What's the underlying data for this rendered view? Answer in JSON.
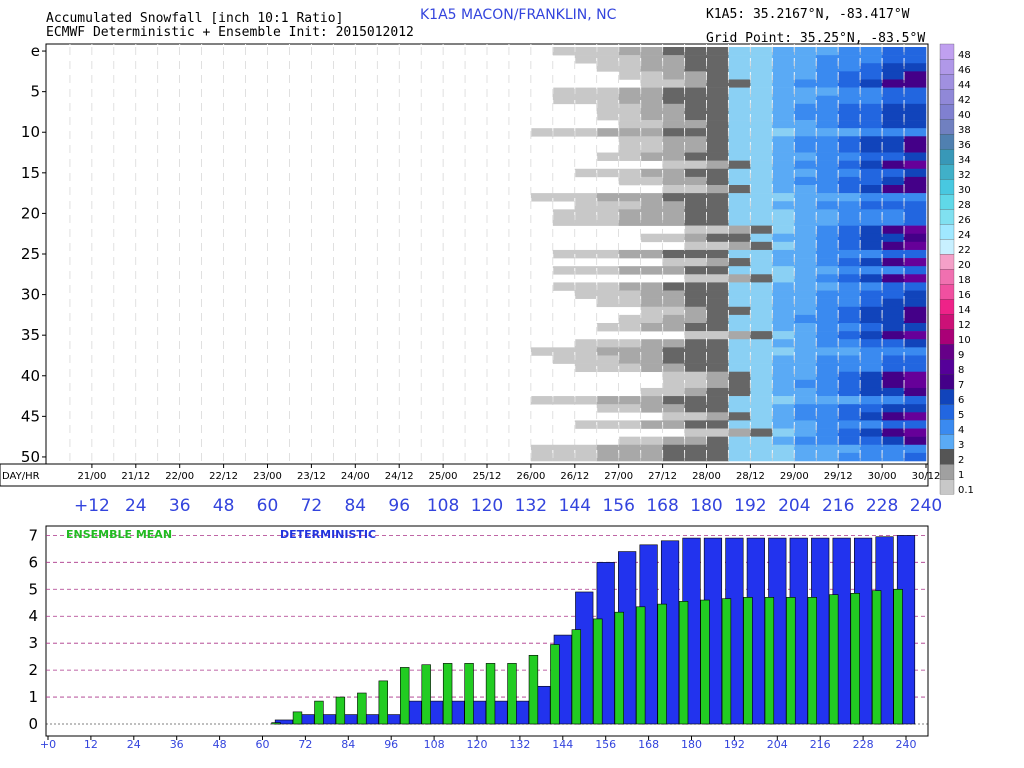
{
  "header": {
    "title_line1": "Accumulated Snowfall [inch 10:1 Ratio]",
    "title_line2": "ECMWF Deterministic + Ensemble Init: 2015012012",
    "station": "K1A5 MACON/FRANKLIN, NC",
    "station_coords": "K1A5: 35.2167°N, -83.417°W",
    "grid_point": "Grid Point: 35.25°N, -83.5°W"
  },
  "colors": {
    "deterministic_bar": "#2233ee",
    "ensemble_bar": "#22cc22",
    "ensemble_label": "#22bb22",
    "deterministic_label": "#2233dd",
    "gridline": "#aa3388",
    "axis_text_blue": "#3344dd"
  },
  "chart_data": [
    {
      "type": "heatmap",
      "title": "Accumulated Snowfall [inch 10:1 Ratio]",
      "member_labels": [
        "e",
        "5",
        "10",
        "15",
        "20",
        "25",
        "30",
        "35",
        "40",
        "45",
        "50"
      ],
      "member_count": 51,
      "date_axis_label": "DAY/HR",
      "date_labels": [
        "21/00",
        "21/12",
        "22/00",
        "22/12",
        "23/00",
        "23/12",
        "24/00",
        "24/12",
        "25/00",
        "25/12",
        "26/00",
        "26/12",
        "27/00",
        "27/12",
        "28/00",
        "28/12",
        "29/00",
        "29/12",
        "30/00",
        "30/12"
      ],
      "hour_labels": [
        "+12",
        "24",
        "36",
        "48",
        "60",
        "72",
        "84",
        "96",
        "108",
        "120",
        "132",
        "144",
        "156",
        "168",
        "180",
        "192",
        "204",
        "216",
        "228",
        "240"
      ],
      "time_step_hours": 6,
      "time_steps": 40,
      "legend": {
        "levels": [
          "0.1",
          "1",
          "2",
          "3",
          "4",
          "5",
          "6",
          "7",
          "8",
          "9",
          "10",
          "12",
          "14",
          "16",
          "18",
          "20",
          "22",
          "24",
          "26",
          "28",
          "30",
          "32",
          "34",
          "36",
          "38",
          "40",
          "42",
          "44",
          "46",
          "48"
        ],
        "labeled_levels": [
          "0.1",
          "1",
          "2",
          "3",
          "4",
          "5",
          "6",
          "7",
          "8",
          "9",
          "10",
          "12",
          "14",
          "16",
          "18",
          "20",
          "22",
          "24",
          "26",
          "28",
          "30",
          "32",
          "34",
          "36",
          "38",
          "40",
          "42",
          "44",
          "46",
          "48"
        ],
        "colors": [
          "#c8c8c8",
          "#a0a0a0",
          "#555555",
          "#5aaaf5",
          "#3a8af0",
          "#2266e0",
          "#1144bb",
          "#440088",
          "#550099",
          "#660088",
          "#aa0077",
          "#cc1177",
          "#ee2288",
          "#f050a0",
          "#f070b0",
          "#f4a0c8",
          "#c8f0ff",
          "#a0e8ff",
          "#80e0f0",
          "#60d8e8",
          "#48c8e0",
          "#40b0c8",
          "#3898b8",
          "#5080b0",
          "#7080c0",
          "#8080d0",
          "#9088d8",
          "#a090e0",
          "#b098e8",
          "#c0a0f0"
        ]
      }
    },
    {
      "type": "bar",
      "title": "",
      "x_tick_labels": [
        "+0",
        "12",
        "24",
        "36",
        "48",
        "60",
        "72",
        "84",
        "96",
        "108",
        "120",
        "132",
        "144",
        "156",
        "168",
        "180",
        "192",
        "204",
        "216",
        "228",
        "240"
      ],
      "y_tick_labels": [
        "0",
        "1",
        "2",
        "3",
        "4",
        "5",
        "6",
        "7"
      ],
      "ylim": [
        0,
        7.2
      ],
      "x_hours": [
        66,
        72,
        78,
        84,
        90,
        96,
        102,
        108,
        114,
        120,
        126,
        132,
        138,
        144,
        150,
        156,
        162,
        168,
        174,
        180,
        186,
        192,
        198,
        204,
        210,
        216,
        222,
        228,
        234,
        240
      ],
      "series": [
        {
          "name": "ENSEMBLE MEAN",
          "values": [
            0.05,
            0.45,
            0.85,
            1.0,
            1.15,
            1.6,
            2.1,
            2.2,
            2.25,
            2.25,
            2.25,
            2.25,
            2.55,
            2.95,
            3.5,
            3.9,
            4.15,
            4.35,
            4.45,
            4.55,
            4.6,
            4.65,
            4.7,
            4.7,
            4.7,
            4.7,
            4.8,
            4.85,
            4.95,
            5.0
          ]
        },
        {
          "name": "DETERMINISTIC",
          "values": [
            0.15,
            0.35,
            0.35,
            0.35,
            0.35,
            0.35,
            0.85,
            0.85,
            0.85,
            0.85,
            0.85,
            0.85,
            1.4,
            3.3,
            4.9,
            6.0,
            6.4,
            6.65,
            6.8,
            6.9,
            6.9,
            6.9,
            6.9,
            6.9,
            6.9,
            6.9,
            6.9,
            6.9,
            6.95,
            7.0
          ]
        }
      ]
    }
  ]
}
